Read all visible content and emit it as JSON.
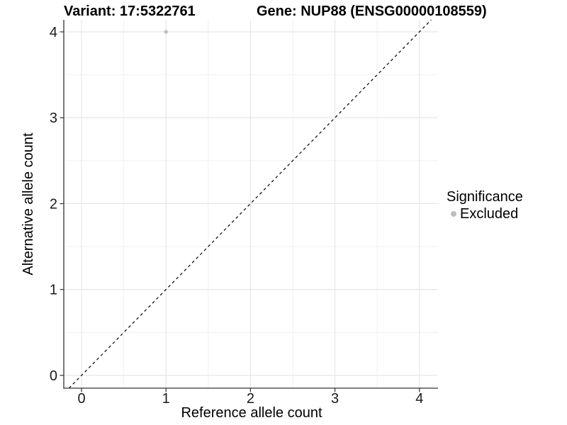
{
  "header": {
    "variant_title": "Variant: 17:5322761",
    "gene_title": "Gene: NUP88 (ENSG00000108559)"
  },
  "chart_data": {
    "type": "scatter",
    "title_left": "Variant: 17:5322761",
    "title_right": "Gene: NUP88 (ENSG00000108559)",
    "xlabel": "Reference allele count",
    "ylabel": "Alternative allele count",
    "x_ticks": [
      0,
      1,
      2,
      3,
      4
    ],
    "y_ticks": [
      0,
      1,
      2,
      3,
      4
    ],
    "x_minor_ticks": [
      0.5,
      1.5,
      2.5,
      3.5
    ],
    "y_minor_ticks": [
      0.5,
      1.5,
      2.5,
      3.5
    ],
    "xlim": [
      -0.21,
      4.22
    ],
    "ylim": [
      -0.149,
      4.14
    ],
    "grid": true,
    "reference_line": {
      "kind": "identity",
      "slope": 1,
      "intercept": 0,
      "style": "dashed",
      "color": "#000000"
    },
    "series": [
      {
        "name": "Excluded",
        "color": "#bebebe",
        "points": [
          {
            "x": 1,
            "y": 4
          }
        ]
      }
    ],
    "legend": {
      "position": "right",
      "title": "Significance",
      "items": [
        {
          "label": "Excluded",
          "color": "#bebebe"
        }
      ]
    },
    "colors": {
      "background": "#ffffff",
      "grid_major": "#e4e4e4",
      "grid_minor": "#f0f0f0",
      "axis_line": "#333333",
      "tick_text": "#1a1a1a"
    }
  }
}
